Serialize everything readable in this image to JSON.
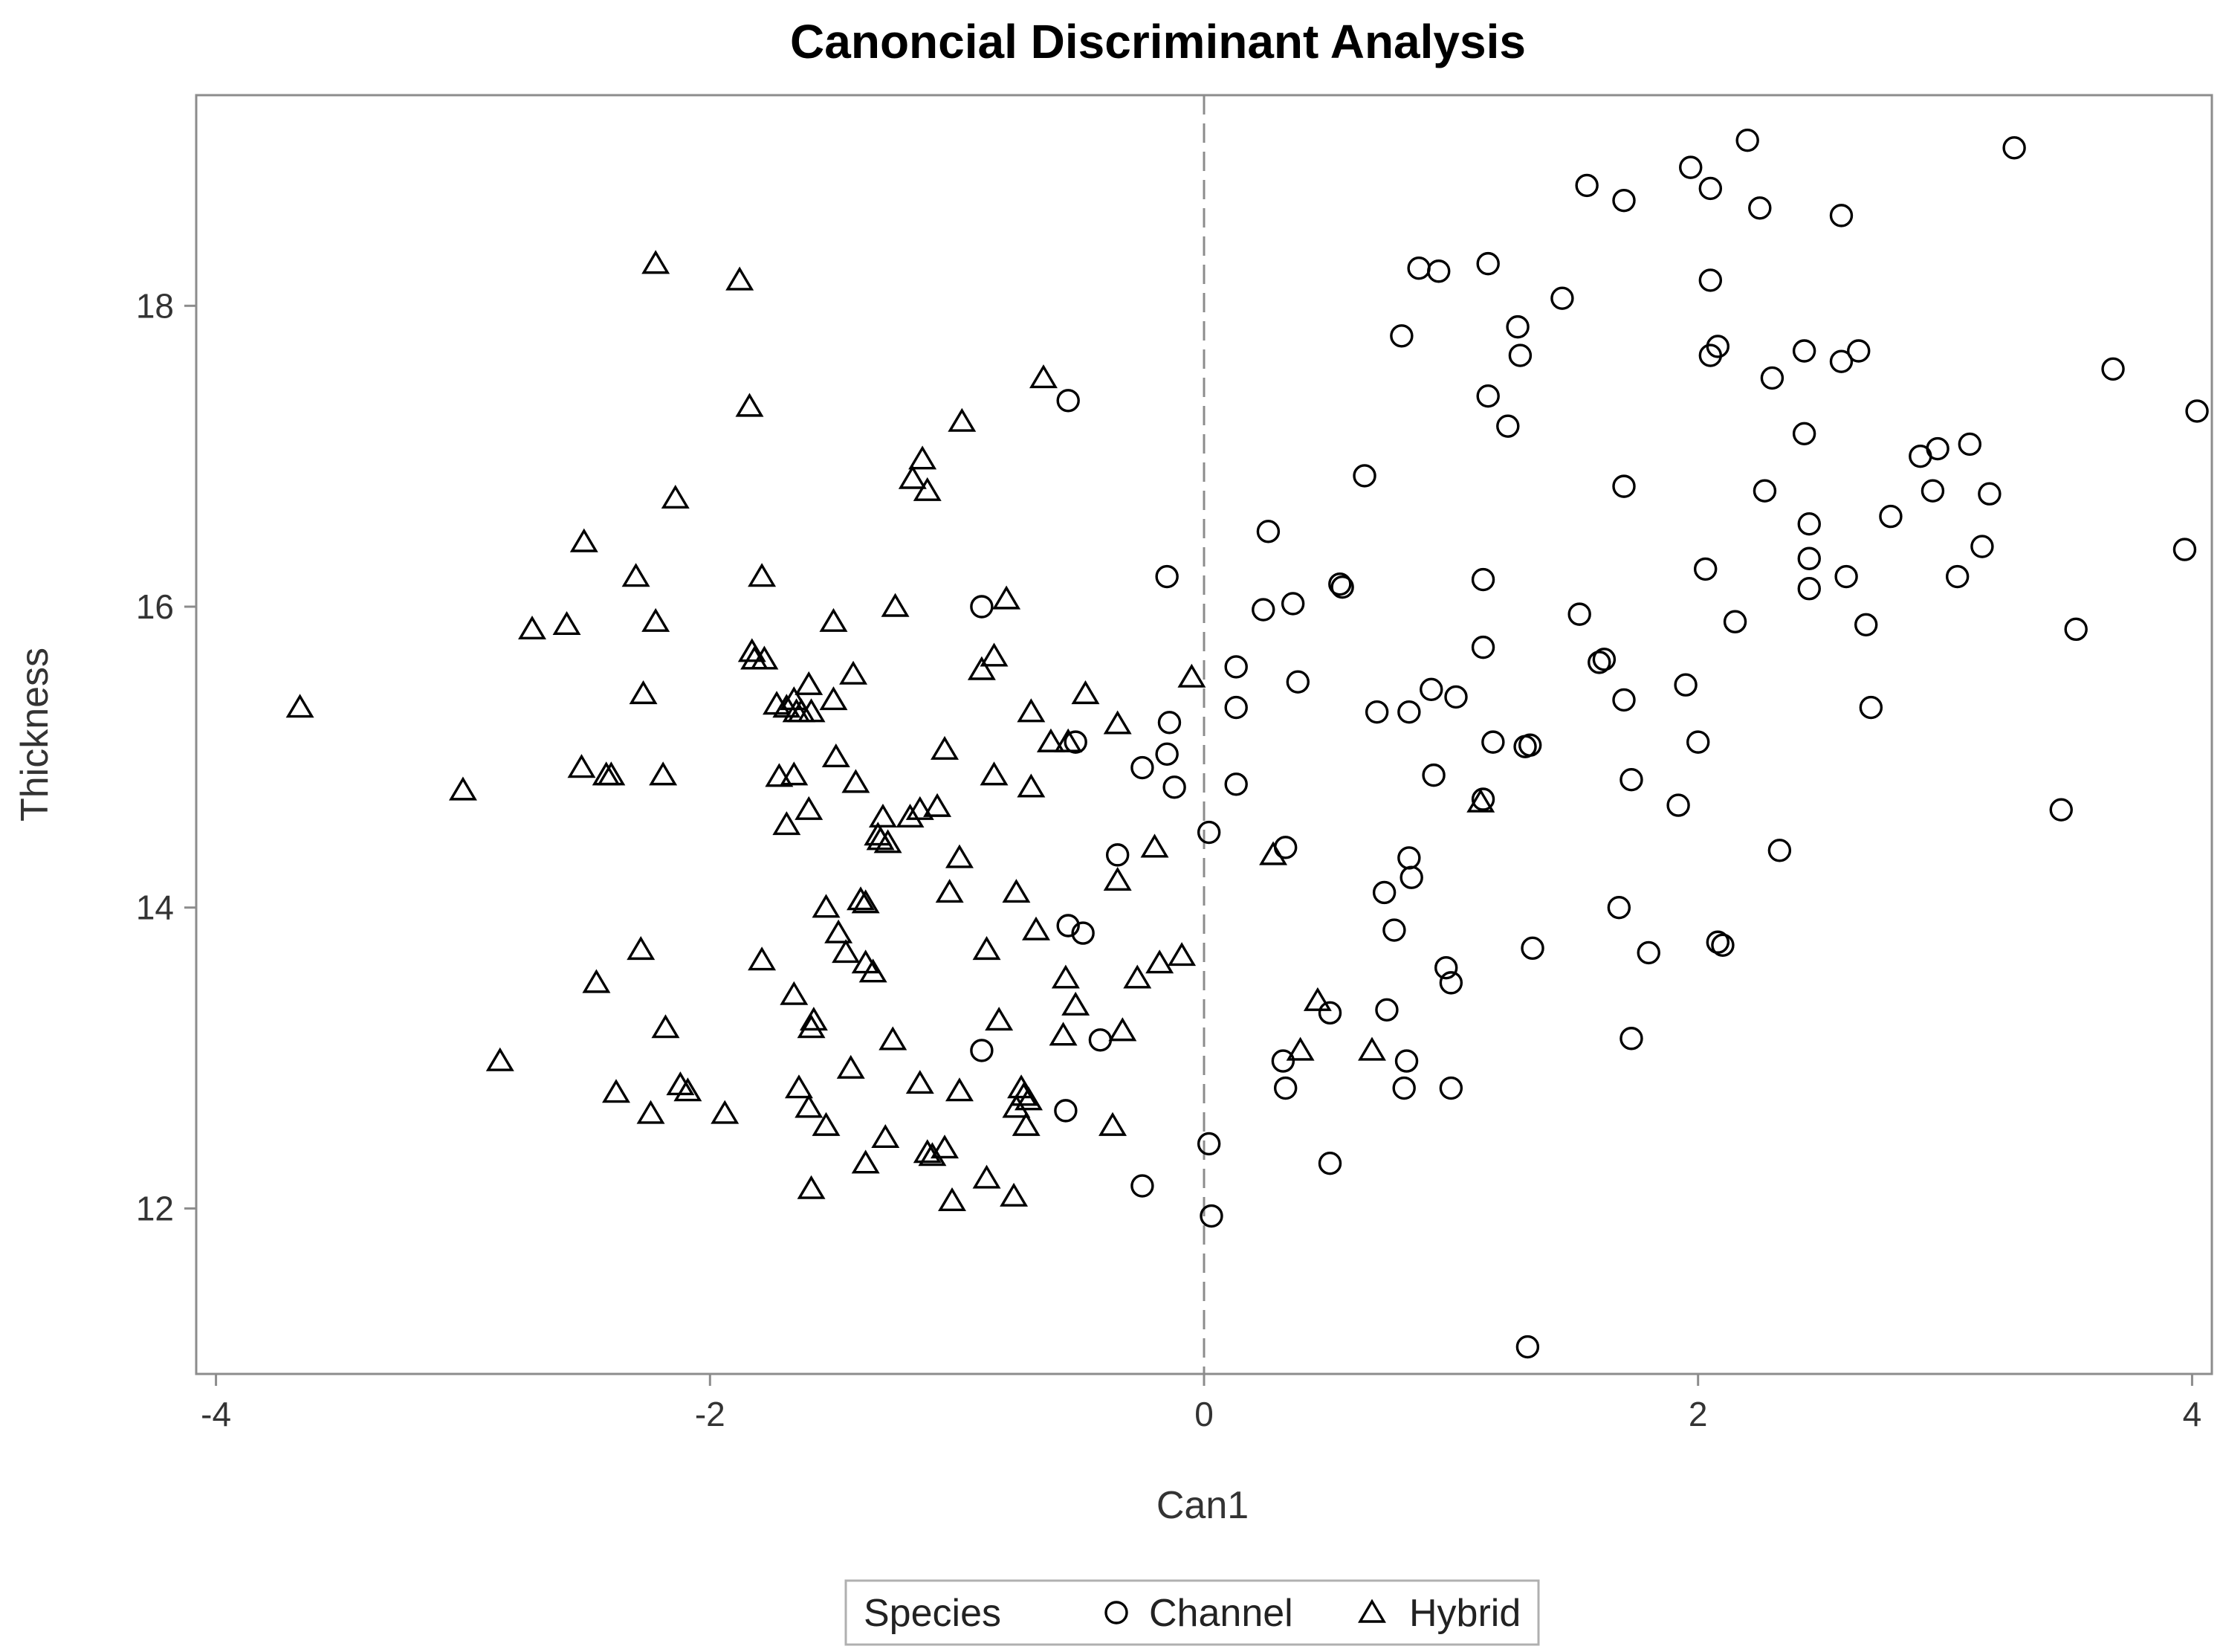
{
  "chart_data": {
    "type": "scatter",
    "title": "Canoncial Discriminant Analysis",
    "xlabel": "Can1",
    "ylabel": "Thickness",
    "xlim": [
      -4.08,
      4.08
    ],
    "ylim": [
      10.9,
      19.4
    ],
    "xticks": [
      -4,
      -2,
      0,
      2,
      4
    ],
    "yticks": [
      12,
      14,
      16,
      18
    ],
    "reference_line": {
      "axis": "x",
      "value": 0,
      "style": "dashed"
    },
    "legend": {
      "title": "Species",
      "position": "bottom-center",
      "entries": [
        "Channel",
        "Hybrid"
      ]
    },
    "series": [
      {
        "name": "Channel",
        "marker": "circle",
        "points": [
          [
            2.2,
            19.1
          ],
          [
            3.28,
            19.05
          ],
          [
            1.97,
            18.92
          ],
          [
            1.55,
            18.8
          ],
          [
            1.7,
            18.7
          ],
          [
            2.05,
            18.78
          ],
          [
            2.25,
            18.65
          ],
          [
            2.58,
            18.6
          ],
          [
            1.15,
            18.28
          ],
          [
            0.87,
            18.25
          ],
          [
            0.95,
            18.23
          ],
          [
            2.05,
            18.17
          ],
          [
            1.45,
            18.05
          ],
          [
            1.27,
            17.86
          ],
          [
            0.8,
            17.8
          ],
          [
            2.08,
            17.73
          ],
          [
            2.05,
            17.67
          ],
          [
            1.28,
            17.67
          ],
          [
            2.43,
            17.7
          ],
          [
            2.65,
            17.7
          ],
          [
            2.58,
            17.63
          ],
          [
            3.68,
            17.58
          ],
          [
            2.3,
            17.52
          ],
          [
            -0.55,
            17.37
          ],
          [
            1.15,
            17.4
          ],
          [
            4.02,
            17.3
          ],
          [
            1.23,
            17.2
          ],
          [
            2.43,
            17.15
          ],
          [
            3.1,
            17.08
          ],
          [
            2.97,
            17.05
          ],
          [
            2.9,
            17.0
          ],
          [
            0.65,
            16.87
          ],
          [
            1.7,
            16.8
          ],
          [
            2.27,
            16.77
          ],
          [
            2.95,
            16.77
          ],
          [
            3.18,
            16.75
          ],
          [
            2.78,
            16.6
          ],
          [
            2.45,
            16.55
          ],
          [
            0.26,
            16.5
          ],
          [
            3.97,
            16.38
          ],
          [
            3.15,
            16.4
          ],
          [
            2.45,
            16.32
          ],
          [
            2.03,
            16.25
          ],
          [
            -0.15,
            16.2
          ],
          [
            1.13,
            16.18
          ],
          [
            2.6,
            16.2
          ],
          [
            3.05,
            16.2
          ],
          [
            0.55,
            16.15
          ],
          [
            0.56,
            16.13
          ],
          [
            2.45,
            16.12
          ],
          [
            0.36,
            16.02
          ],
          [
            -0.9,
            16.0
          ],
          [
            0.24,
            15.98
          ],
          [
            1.52,
            15.95
          ],
          [
            2.15,
            15.9
          ],
          [
            2.68,
            15.88
          ],
          [
            3.53,
            15.85
          ],
          [
            1.13,
            15.73
          ],
          [
            1.62,
            15.65
          ],
          [
            1.6,
            15.63
          ],
          [
            0.13,
            15.6
          ],
          [
            0.38,
            15.5
          ],
          [
            1.95,
            15.48
          ],
          [
            0.92,
            15.45
          ],
          [
            1.02,
            15.4
          ],
          [
            1.7,
            15.38
          ],
          [
            0.13,
            15.33
          ],
          [
            0.7,
            15.3
          ],
          [
            0.83,
            15.3
          ],
          [
            2.7,
            15.33
          ],
          [
            -0.14,
            15.23
          ],
          [
            1.17,
            15.1
          ],
          [
            2.0,
            15.1
          ],
          [
            -0.52,
            15.1
          ],
          [
            1.3,
            15.07
          ],
          [
            1.32,
            15.08
          ],
          [
            -0.15,
            15.02
          ],
          [
            -0.25,
            14.93
          ],
          [
            0.93,
            14.88
          ],
          [
            1.73,
            14.85
          ],
          [
            -0.12,
            14.8
          ],
          [
            0.13,
            14.82
          ],
          [
            1.13,
            14.72
          ],
          [
            1.92,
            14.68
          ],
          [
            3.47,
            14.65
          ],
          [
            0.02,
            14.5
          ],
          [
            0.33,
            14.4
          ],
          [
            2.33,
            14.38
          ],
          [
            -0.35,
            14.35
          ],
          [
            0.83,
            14.33
          ],
          [
            0.84,
            14.2
          ],
          [
            0.73,
            14.1
          ],
          [
            1.68,
            14.0
          ],
          [
            -0.55,
            13.88
          ],
          [
            -0.49,
            13.83
          ],
          [
            0.77,
            13.85
          ],
          [
            2.08,
            13.77
          ],
          [
            2.1,
            13.75
          ],
          [
            1.33,
            13.73
          ],
          [
            1.8,
            13.7
          ],
          [
            0.98,
            13.6
          ],
          [
            1.0,
            13.5
          ],
          [
            0.51,
            13.3
          ],
          [
            0.74,
            13.32
          ],
          [
            -0.42,
            13.12
          ],
          [
            1.73,
            13.13
          ],
          [
            -0.9,
            13.05
          ],
          [
            0.32,
            12.98
          ],
          [
            0.82,
            12.98
          ],
          [
            0.33,
            12.8
          ],
          [
            0.81,
            12.8
          ],
          [
            1.0,
            12.8
          ],
          [
            -0.56,
            12.65
          ],
          [
            0.02,
            12.43
          ],
          [
            0.51,
            12.3
          ],
          [
            -0.25,
            12.15
          ],
          [
            0.03,
            11.95
          ],
          [
            1.31,
            11.08
          ]
        ]
      },
      {
        "name": "Hybrid",
        "marker": "triangle",
        "points": [
          [
            -2.22,
            18.28
          ],
          [
            -1.88,
            18.17
          ],
          [
            -0.65,
            17.52
          ],
          [
            -1.84,
            17.33
          ],
          [
            -0.98,
            17.23
          ],
          [
            -1.14,
            16.98
          ],
          [
            -1.18,
            16.85
          ],
          [
            -1.12,
            16.77
          ],
          [
            -2.14,
            16.72
          ],
          [
            -2.51,
            16.43
          ],
          [
            -2.3,
            16.2
          ],
          [
            -1.79,
            16.2
          ],
          [
            -0.8,
            16.05
          ],
          [
            -1.25,
            16.0
          ],
          [
            -2.72,
            15.85
          ],
          [
            -2.58,
            15.88
          ],
          [
            -2.22,
            15.9
          ],
          [
            -1.5,
            15.9
          ],
          [
            -1.83,
            15.7
          ],
          [
            -1.82,
            15.65
          ],
          [
            -1.78,
            15.65
          ],
          [
            -0.85,
            15.67
          ],
          [
            -0.9,
            15.58
          ],
          [
            -1.42,
            15.55
          ],
          [
            -0.05,
            15.53
          ],
          [
            -1.6,
            15.48
          ],
          [
            -2.27,
            15.42
          ],
          [
            -1.5,
            15.38
          ],
          [
            -0.48,
            15.42
          ],
          [
            -1.66,
            15.38
          ],
          [
            -1.69,
            15.33
          ],
          [
            -1.73,
            15.35
          ],
          [
            -1.63,
            15.3
          ],
          [
            -1.65,
            15.3
          ],
          [
            -1.59,
            15.3
          ],
          [
            -3.66,
            15.33
          ],
          [
            -0.7,
            15.3
          ],
          [
            -0.35,
            15.22
          ],
          [
            -1.05,
            15.05
          ],
          [
            -0.62,
            15.1
          ],
          [
            -0.55,
            15.1
          ],
          [
            -1.49,
            15.0
          ],
          [
            -2.52,
            14.93
          ],
          [
            -2.42,
            14.88
          ],
          [
            -2.4,
            14.88
          ],
          [
            -2.19,
            14.88
          ],
          [
            -1.72,
            14.87
          ],
          [
            -1.66,
            14.88
          ],
          [
            -1.41,
            14.83
          ],
          [
            -0.85,
            14.88
          ],
          [
            -0.7,
            14.8
          ],
          [
            -3.0,
            14.78
          ],
          [
            -1.6,
            14.65
          ],
          [
            -1.15,
            14.65
          ],
          [
            -1.08,
            14.67
          ],
          [
            -1.3,
            14.6
          ],
          [
            -1.19,
            14.6
          ],
          [
            -1.69,
            14.55
          ],
          [
            -1.32,
            14.48
          ],
          [
            -1.31,
            14.45
          ],
          [
            -1.28,
            14.43
          ],
          [
            1.12,
            14.7
          ],
          [
            -0.2,
            14.4
          ],
          [
            0.28,
            14.35
          ],
          [
            -0.99,
            14.33
          ],
          [
            -0.35,
            14.18
          ],
          [
            -1.03,
            14.1
          ],
          [
            -0.76,
            14.1
          ],
          [
            -1.39,
            14.05
          ],
          [
            -1.37,
            14.03
          ],
          [
            -1.53,
            14.0
          ],
          [
            -0.68,
            13.85
          ],
          [
            -1.48,
            13.83
          ],
          [
            -2.28,
            13.72
          ],
          [
            -0.88,
            13.72
          ],
          [
            -1.45,
            13.7
          ],
          [
            -0.09,
            13.68
          ],
          [
            -0.18,
            13.63
          ],
          [
            -1.37,
            13.63
          ],
          [
            -1.34,
            13.57
          ],
          [
            -1.79,
            13.65
          ],
          [
            -2.46,
            13.5
          ],
          [
            -0.27,
            13.53
          ],
          [
            -0.56,
            13.53
          ],
          [
            -1.66,
            13.42
          ],
          [
            0.46,
            13.38
          ],
          [
            -0.52,
            13.35
          ],
          [
            -1.58,
            13.25
          ],
          [
            -0.83,
            13.25
          ],
          [
            -2.18,
            13.2
          ],
          [
            -1.59,
            13.2
          ],
          [
            -0.57,
            13.15
          ],
          [
            -0.33,
            13.18
          ],
          [
            -1.26,
            13.12
          ],
          [
            0.39,
            13.05
          ],
          [
            0.68,
            13.05
          ],
          [
            -2.85,
            12.98
          ],
          [
            -1.43,
            12.93
          ],
          [
            -0.74,
            12.8
          ],
          [
            -1.15,
            12.83
          ],
          [
            -2.12,
            12.82
          ],
          [
            -2.38,
            12.77
          ],
          [
            -2.09,
            12.78
          ],
          [
            -1.64,
            12.8
          ],
          [
            -0.99,
            12.78
          ],
          [
            -0.73,
            12.75
          ],
          [
            -0.71,
            12.72
          ],
          [
            -1.6,
            12.67
          ],
          [
            -0.76,
            12.67
          ],
          [
            -1.94,
            12.63
          ],
          [
            -2.24,
            12.63
          ],
          [
            -1.53,
            12.55
          ],
          [
            -0.72,
            12.55
          ],
          [
            -0.37,
            12.55
          ],
          [
            -1.29,
            12.47
          ],
          [
            -1.05,
            12.4
          ],
          [
            -1.1,
            12.35
          ],
          [
            -1.12,
            12.37
          ],
          [
            -1.37,
            12.3
          ],
          [
            -0.88,
            12.2
          ],
          [
            -1.59,
            12.13
          ],
          [
            -1.02,
            12.05
          ],
          [
            -0.77,
            12.08
          ]
        ]
      }
    ]
  }
}
